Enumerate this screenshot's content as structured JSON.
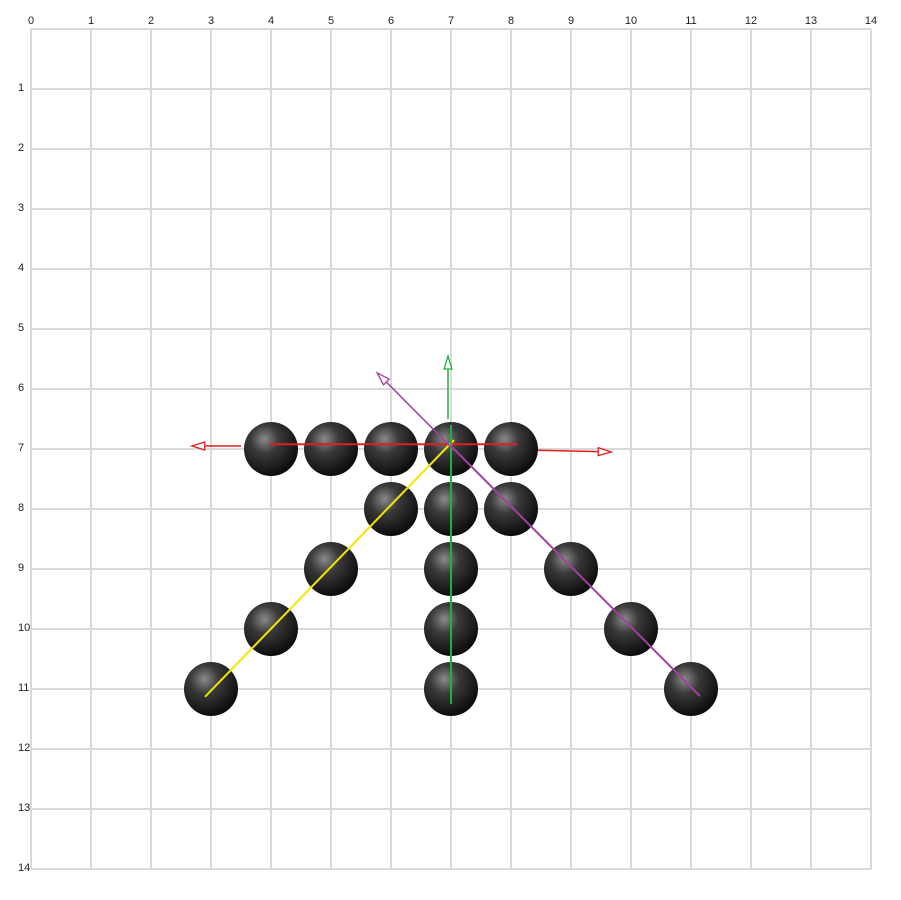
{
  "board": {
    "columns": [
      "0",
      "1",
      "2",
      "3",
      "4",
      "5",
      "6",
      "7",
      "8",
      "9",
      "10",
      "11",
      "12",
      "13",
      "14"
    ],
    "rows": [
      "1",
      "2",
      "3",
      "4",
      "5",
      "6",
      "7",
      "8",
      "9",
      "10",
      "11",
      "12",
      "13",
      "14"
    ],
    "grid_color": "#d9d9d9"
  },
  "stones": [
    {
      "x": 4,
      "y": 7
    },
    {
      "x": 5,
      "y": 7
    },
    {
      "x": 6,
      "y": 7
    },
    {
      "x": 7,
      "y": 7
    },
    {
      "x": 8,
      "y": 7
    },
    {
      "x": 6,
      "y": 8
    },
    {
      "x": 7,
      "y": 8
    },
    {
      "x": 8,
      "y": 8
    },
    {
      "x": 5,
      "y": 9
    },
    {
      "x": 7,
      "y": 9
    },
    {
      "x": 9,
      "y": 9
    },
    {
      "x": 4,
      "y": 10
    },
    {
      "x": 7,
      "y": 10
    },
    {
      "x": 10,
      "y": 10
    },
    {
      "x": 3,
      "y": 11
    },
    {
      "x": 7,
      "y": 11
    },
    {
      "x": 11,
      "y": 11
    }
  ],
  "stone_colors": {
    "highlight": "#8a8a8a",
    "mid": "#3a3a3a",
    "dark": "#050505"
  },
  "lines": [
    {
      "name": "red-line",
      "color": "#e02020",
      "from": [
        3.97,
        6.92
      ],
      "to": [
        8.1,
        6.92
      ]
    },
    {
      "name": "yellow-line",
      "color": "#f2e600",
      "from": [
        2.9,
        11.13
      ],
      "to": [
        7.05,
        6.85
      ]
    },
    {
      "name": "green-line",
      "color": "#22b040",
      "from": [
        7.0,
        11.25
      ],
      "to": [
        7.0,
        6.6
      ]
    },
    {
      "name": "purple-line",
      "color": "#a040a0",
      "from": [
        7.0,
        6.95
      ],
      "to": [
        11.15,
        11.12
      ]
    }
  ],
  "arrows": [
    {
      "name": "red-left-arrow",
      "color": "#e02020",
      "from": [
        3.5,
        6.95
      ],
      "to": [
        2.68,
        6.95
      ]
    },
    {
      "name": "red-right-arrow",
      "color": "#e02020",
      "from": [
        8.45,
        7.02
      ],
      "to": [
        9.67,
        7.05
      ]
    },
    {
      "name": "green-up-arrow",
      "color": "#22b040",
      "from": [
        6.95,
        6.5
      ],
      "to": [
        6.95,
        5.45
      ]
    },
    {
      "name": "purple-up-left-arrow",
      "color": "#a040a0",
      "from": [
        7.05,
        7.02
      ],
      "to": [
        5.77,
        5.73
      ]
    }
  ]
}
